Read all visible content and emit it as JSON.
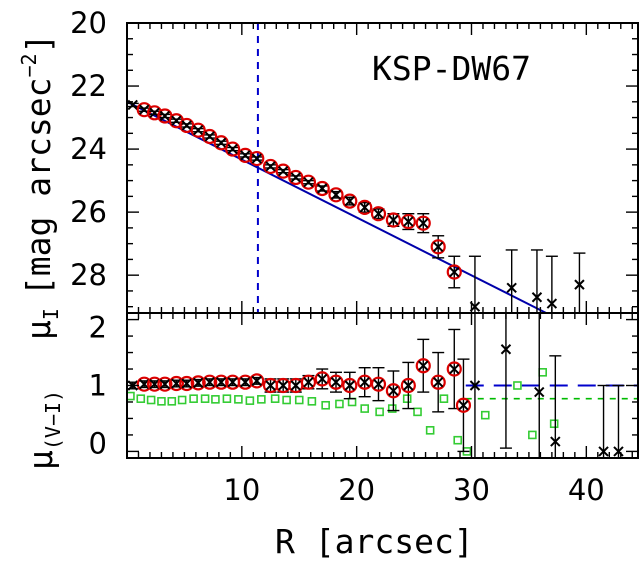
{
  "chart_data": {
    "type": "scatter",
    "xlabel": "R [arcsec]",
    "xlim": [
      0,
      44.5
    ],
    "xticks": [
      10,
      20,
      30,
      40
    ],
    "panels": [
      {
        "id": "top",
        "ylabel_main": "μ",
        "ylabel_sub": "I",
        "ylabel_rest": "[mag arcsec",
        "ylabel_sup": "−2",
        "ylabel_close": "]",
        "ylim": [
          29.2,
          20
        ],
        "yticks": [
          20,
          22,
          24,
          26,
          28
        ],
        "annotation": "KSP-DW67",
        "vline_x": 11.4,
        "vline_color": "#0000cc",
        "fit_line": {
          "color": "#0000aa",
          "x": [
            0,
            36.5
          ],
          "y": [
            22.5,
            29.2
          ]
        },
        "points": {
          "x": [
            0.5,
            1.5,
            2.4,
            3.3,
            4.3,
            5.2,
            6.2,
            7.2,
            8.2,
            9.2,
            10.3,
            11.3,
            12.5,
            13.6,
            14.7,
            15.8,
            17.0,
            18.2,
            19.4,
            20.7,
            21.9,
            23.2,
            24.5,
            25.8,
            27.1,
            28.5
          ],
          "y": [
            22.6,
            22.75,
            22.85,
            22.95,
            23.1,
            23.25,
            23.4,
            23.6,
            23.8,
            24.0,
            24.2,
            24.3,
            24.55,
            24.7,
            24.9,
            25.05,
            25.25,
            25.45,
            25.65,
            25.85,
            26.05,
            26.25,
            26.3,
            26.35,
            27.1,
            27.9
          ],
          "err": [
            0.05,
            0.05,
            0.05,
            0.05,
            0.05,
            0.05,
            0.05,
            0.05,
            0.05,
            0.05,
            0.05,
            0.05,
            0.05,
            0.05,
            0.05,
            0.05,
            0.08,
            0.1,
            0.12,
            0.15,
            0.15,
            0.2,
            0.25,
            0.3,
            0.35,
            0.5
          ],
          "circled": [
            false,
            true,
            true,
            true,
            true,
            true,
            true,
            true,
            true,
            true,
            true,
            true,
            true,
            true,
            true,
            true,
            true,
            true,
            true,
            true,
            true,
            true,
            true,
            true,
            true,
            true
          ]
        },
        "outer_points": {
          "x": [
            30.3,
            33.5,
            35.7,
            37.0,
            39.4
          ],
          "y": [
            29.0,
            28.4,
            28.7,
            28.9,
            28.3
          ],
          "err": [
            1.6,
            1.2,
            1.5,
            1.5,
            1.0
          ]
        }
      },
      {
        "id": "bottom",
        "ylabel_main": "μ",
        "ylabel_sub": "(V−I)",
        "ylim": [
          -0.1,
          2.1
        ],
        "yticks": [
          0,
          1,
          2
        ],
        "hline_blue": {
          "y": 1.0,
          "x_start": 29.5,
          "color": "#0000cc"
        },
        "hline_green": {
          "y": 0.8,
          "x_start": 29.5,
          "color": "#00bb00"
        },
        "points": {
          "x": [
            0.5,
            1.5,
            2.4,
            3.3,
            4.3,
            5.2,
            6.2,
            7.2,
            8.2,
            9.2,
            10.3,
            11.3,
            12.5,
            13.6,
            14.7,
            15.8,
            17.0,
            18.2,
            19.4,
            20.7,
            21.9,
            23.2,
            24.5,
            25.8,
            27.1,
            28.5
          ],
          "y": [
            1.0,
            1.02,
            1.02,
            1.02,
            1.03,
            1.03,
            1.04,
            1.05,
            1.05,
            1.05,
            1.05,
            1.07,
            1.0,
            1.0,
            1.0,
            1.05,
            1.1,
            1.05,
            1.0,
            1.05,
            1.02,
            0.92,
            1.0,
            1.3,
            1.05,
            1.25
          ],
          "err": [
            0.05,
            0.05,
            0.05,
            0.05,
            0.05,
            0.05,
            0.05,
            0.05,
            0.05,
            0.05,
            0.05,
            0.05,
            0.1,
            0.1,
            0.1,
            0.1,
            0.15,
            0.15,
            0.2,
            0.22,
            0.25,
            0.3,
            0.35,
            0.4,
            0.45,
            0.6
          ],
          "circled": [
            false,
            true,
            true,
            true,
            true,
            true,
            true,
            true,
            true,
            true,
            true,
            true,
            true,
            true,
            true,
            true,
            true,
            true,
            true,
            true,
            true,
            true,
            true,
            true,
            true,
            true
          ]
        },
        "extra_circle": {
          "x": 29.3,
          "y": 0.7
        },
        "outer_points": {
          "x": [
            30.3,
            33.0,
            35.9,
            37.3,
            41.5,
            42.8
          ],
          "y": [
            1.0,
            1.55,
            0.9,
            0.15,
            0.0,
            0.0
          ],
          "err": [
            1.5,
            1.5,
            1.2,
            1.3,
            1.0,
            1.0
          ]
        },
        "green_points": {
          "x": [
            0.3,
            1.2,
            2.1,
            3.0,
            3.9,
            4.8,
            5.8,
            6.8,
            7.7,
            8.7,
            9.7,
            10.7,
            11.7,
            12.9,
            13.9,
            15.0,
            16.1,
            17.3,
            18.5,
            19.6,
            20.7,
            22.0,
            23.1,
            24.4,
            25.3,
            26.4,
            27.6,
            28.8,
            29.6,
            31.2,
            34.0,
            35.3,
            36.2,
            37.2
          ],
          "y": [
            0.84,
            0.8,
            0.78,
            0.76,
            0.76,
            0.78,
            0.8,
            0.8,
            0.79,
            0.8,
            0.79,
            0.77,
            0.79,
            0.8,
            0.78,
            0.78,
            0.76,
            0.7,
            0.72,
            0.75,
            0.65,
            0.6,
            0.65,
            0.8,
            0.6,
            0.32,
            0.8,
            0.17,
            0.0,
            0.55,
            1.0,
            0.25,
            1.2,
            0.42
          ],
          "color": "#33cc33"
        }
      }
    ]
  }
}
